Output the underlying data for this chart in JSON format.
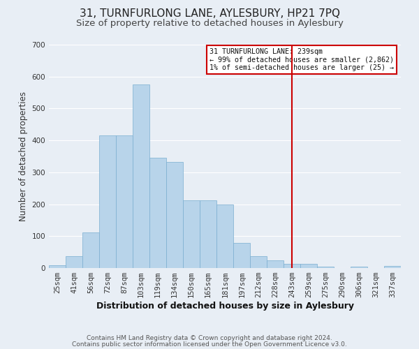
{
  "title": "31, TURNFURLONG LANE, AYLESBURY, HP21 7PQ",
  "subtitle": "Size of property relative to detached houses in Aylesbury",
  "xlabel": "Distribution of detached houses by size in Aylesbury",
  "ylabel": "Number of detached properties",
  "bar_labels": [
    "25sqm",
    "41sqm",
    "56sqm",
    "72sqm",
    "87sqm",
    "103sqm",
    "119sqm",
    "134sqm",
    "150sqm",
    "165sqm",
    "181sqm",
    "197sqm",
    "212sqm",
    "228sqm",
    "243sqm",
    "259sqm",
    "275sqm",
    "290sqm",
    "306sqm",
    "321sqm",
    "337sqm"
  ],
  "bar_heights": [
    8,
    38,
    112,
    415,
    415,
    575,
    345,
    332,
    213,
    213,
    200,
    80,
    38,
    25,
    13,
    13,
    4,
    0,
    5,
    0,
    7
  ],
  "bar_color": "#b8d4ea",
  "bar_edge_color": "#7aaed0",
  "background_color": "#e8eef5",
  "grid_color": "#ffffff",
  "vline_x": 14.0,
  "vline_color": "#cc0000",
  "legend_title": "31 TURNFURLONG LANE: 239sqm",
  "legend_line1": "← 99% of detached houses are smaller (2,862)",
  "legend_line2": "1% of semi-detached houses are larger (25) →",
  "legend_box_color": "#cc0000",
  "ylim": [
    0,
    700
  ],
  "yticks": [
    0,
    100,
    200,
    300,
    400,
    500,
    600,
    700
  ],
  "footer1": "Contains HM Land Registry data © Crown copyright and database right 2024.",
  "footer2": "Contains public sector information licensed under the Open Government Licence v3.0.",
  "title_fontsize": 11,
  "subtitle_fontsize": 9.5,
  "xlabel_fontsize": 9,
  "ylabel_fontsize": 8.5,
  "tick_fontsize": 7.5,
  "footer_fontsize": 6.5
}
